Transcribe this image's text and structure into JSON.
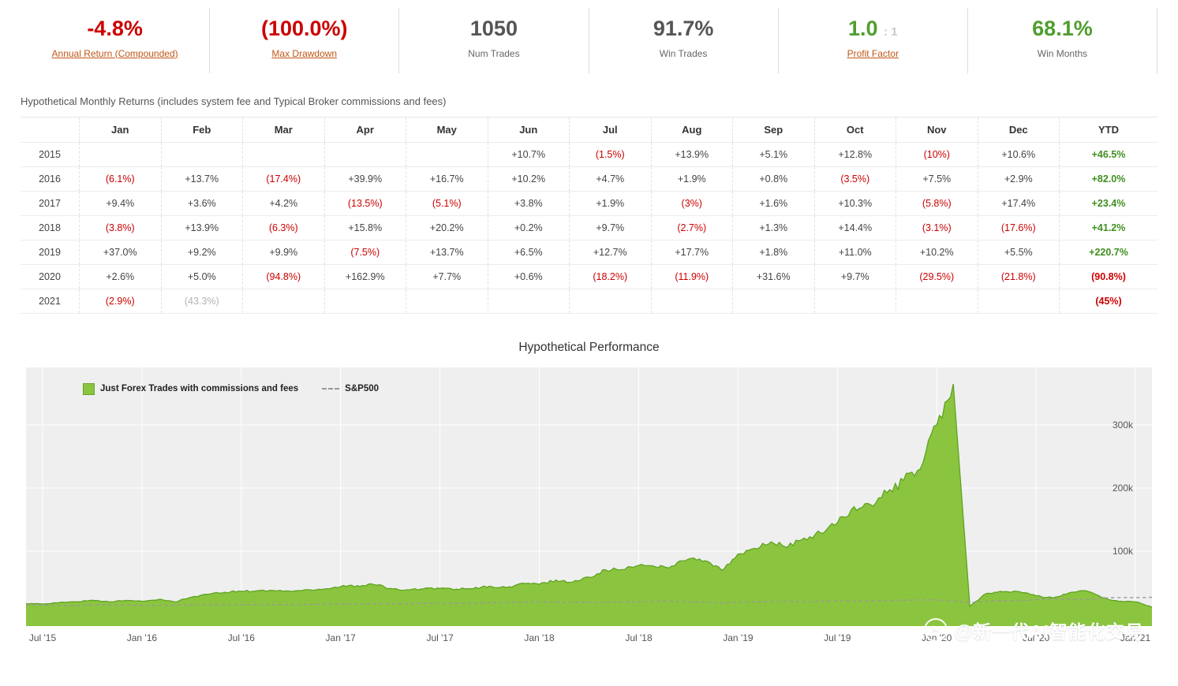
{
  "stats": [
    {
      "id": "annual-return",
      "value": "-4.8%",
      "suffix": "",
      "label": "Annual Return (Compounded)",
      "color": "red",
      "link": true
    },
    {
      "id": "max-drawdown",
      "value": "(100.0%)",
      "suffix": "",
      "label": "Max Drawdown",
      "color": "red",
      "link": true
    },
    {
      "id": "num-trades",
      "value": "1050",
      "suffix": "",
      "label": "Num Trades",
      "color": "gray",
      "link": false
    },
    {
      "id": "win-trades",
      "value": "91.7%",
      "suffix": "",
      "label": "Win Trades",
      "color": "gray",
      "link": false
    },
    {
      "id": "profit-factor",
      "value": "1.0",
      "suffix": ": 1",
      "label": "Profit Factor",
      "color": "green",
      "link": true
    },
    {
      "id": "win-months",
      "value": "68.1%",
      "suffix": "",
      "label": "Win Months",
      "color": "green",
      "link": false
    }
  ],
  "monthly_table": {
    "title": "Hypothetical Monthly Returns (includes system fee and Typical Broker commissions and fees)",
    "columns": [
      "",
      "Jan",
      "Feb",
      "Mar",
      "Apr",
      "May",
      "Jun",
      "Jul",
      "Aug",
      "Sep",
      "Oct",
      "Nov",
      "Dec",
      "YTD"
    ],
    "rows": [
      {
        "year": "2015",
        "cells": [
          "",
          "",
          "",
          "",
          "",
          "+10.7%",
          "(1.5%)",
          "+13.9%",
          "+5.1%",
          "+12.8%",
          "(10%)",
          "+10.6%"
        ],
        "ytd": "+46.5%"
      },
      {
        "year": "2016",
        "cells": [
          "(6.1%)",
          "+13.7%",
          "(17.4%)",
          "+39.9%",
          "+16.7%",
          "+10.2%",
          "+4.7%",
          "+1.9%",
          "+0.8%",
          "(3.5%)",
          "+7.5%",
          "+2.9%"
        ],
        "ytd": "+82.0%"
      },
      {
        "year": "2017",
        "cells": [
          "+9.4%",
          "+3.6%",
          "+4.2%",
          "(13.5%)",
          "(5.1%)",
          "+3.8%",
          "+1.9%",
          "(3%)",
          "+1.6%",
          "+10.3%",
          "(5.8%)",
          "+17.4%"
        ],
        "ytd": "+23.4%"
      },
      {
        "year": "2018",
        "cells": [
          "(3.8%)",
          "+13.9%",
          "(6.3%)",
          "+15.8%",
          "+20.2%",
          "+0.2%",
          "+9.7%",
          "(2.7%)",
          "+1.3%",
          "+14.4%",
          "(3.1%)",
          "(17.6%)"
        ],
        "ytd": "+41.2%"
      },
      {
        "year": "2019",
        "cells": [
          "+37.0%",
          "+9.2%",
          "+9.9%",
          "(7.5%)",
          "+13.7%",
          "+6.5%",
          "+12.7%",
          "+17.7%",
          "+1.8%",
          "+11.0%",
          "+10.2%",
          "+5.5%"
        ],
        "ytd": "+220.7%"
      },
      {
        "year": "2020",
        "cells": [
          "+2.6%",
          "+5.0%",
          "(94.8%)",
          "+162.9%",
          "+7.7%",
          "+0.6%",
          "(18.2%)",
          "(11.9%)",
          "+31.6%",
          "+9.7%",
          "(29.5%)",
          "(21.8%)"
        ],
        "ytd": "(90.8%)"
      },
      {
        "year": "2021",
        "cells": [
          "(2.9%)",
          "(43.3%)",
          "",
          "",
          "",
          "",
          "",
          "",
          "",
          "",
          "",
          ""
        ],
        "muted": [
          1
        ],
        "ytd": "(45%)"
      }
    ]
  },
  "chart": {
    "title": "Hypothetical Performance",
    "x_ticks": [
      "Jul '15",
      "Jan '16",
      "Jul '16",
      "Jan '17",
      "Jul '17",
      "Jan '18",
      "Jul '18",
      "Jan '19",
      "Jul '19",
      "Jan '20",
      "Jul '20",
      "Jan '21"
    ],
    "y_ticks": [
      "300k",
      "200k",
      "100k"
    ]
  },
  "chart_data": {
    "type": "area",
    "title": "Hypothetical Performance",
    "ylim": [
      0,
      380000
    ],
    "y_gridlines": [
      100000,
      200000,
      300000
    ],
    "legend_position": "top-left",
    "x": [
      "2015-06",
      "2015-07",
      "2015-08",
      "2015-09",
      "2015-10",
      "2015-11",
      "2015-12",
      "2016-01",
      "2016-02",
      "2016-03",
      "2016-04",
      "2016-05",
      "2016-06",
      "2016-07",
      "2016-08",
      "2016-09",
      "2016-10",
      "2016-11",
      "2016-12",
      "2017-01",
      "2017-02",
      "2017-03",
      "2017-04",
      "2017-05",
      "2017-06",
      "2017-07",
      "2017-08",
      "2017-09",
      "2017-10",
      "2017-11",
      "2017-12",
      "2018-01",
      "2018-02",
      "2018-03",
      "2018-04",
      "2018-05",
      "2018-06",
      "2018-07",
      "2018-08",
      "2018-09",
      "2018-10",
      "2018-11",
      "2018-12",
      "2019-01",
      "2019-02",
      "2019-03",
      "2019-04",
      "2019-05",
      "2019-06",
      "2019-07",
      "2019-08",
      "2019-09",
      "2019-10",
      "2019-11",
      "2019-12",
      "2020-01",
      "2020-02",
      "2020-03",
      "2020-04",
      "2020-05",
      "2020-06",
      "2020-07",
      "2020-08",
      "2020-09",
      "2020-10",
      "2020-11",
      "2020-12",
      "2021-01",
      "2021-02"
    ],
    "series": [
      {
        "name": "Just Forex Trades with commissions and fees",
        "color": "#8bc53f",
        "values": [
          16600,
          16400,
          18600,
          19600,
          22100,
          19900,
          22000,
          20600,
          23500,
          19400,
          27100,
          31700,
          34900,
          36500,
          37200,
          37500,
          36200,
          38900,
          40000,
          43800,
          45400,
          47300,
          40900,
          38800,
          40300,
          41100,
          39800,
          40500,
          44600,
          42000,
          49400,
          47500,
          54100,
          50700,
          58700,
          70500,
          70700,
          77500,
          75400,
          76400,
          87400,
          84700,
          69800,
          95600,
          104400,
          114800,
          106200,
          120700,
          128500,
          144900,
          170500,
          173600,
          192700,
          212300,
          230000,
          300000,
          365000,
          12500,
          33000,
          35500,
          35700,
          29200,
          25800,
          33900,
          37200,
          26200,
          20500,
          19900,
          11300
        ]
      },
      {
        "name": "S&P500",
        "color": "#999999",
        "style": "dashed",
        "values": [
          15000,
          14900,
          14000,
          13600,
          14700,
          14700,
          14400,
          13700,
          13600,
          14500,
          14600,
          14800,
          14800,
          15300,
          15300,
          15300,
          15000,
          15500,
          15800,
          16100,
          16700,
          16700,
          16800,
          17000,
          17100,
          17400,
          17500,
          17800,
          18200,
          18700,
          18900,
          19900,
          19200,
          18700,
          18700,
          19100,
          19200,
          19900,
          20500,
          20600,
          19200,
          19500,
          17700,
          19100,
          19700,
          20000,
          20800,
          19500,
          20800,
          21100,
          20700,
          21100,
          21500,
          22200,
          22800,
          22800,
          21000,
          18200,
          20500,
          21400,
          21800,
          23000,
          24600,
          23700,
          23100,
          25600,
          26500,
          26200,
          26900
        ]
      }
    ]
  },
  "watermark": {
    "text": "@新一代AI智能化交易",
    "icon": "flag-in-circle"
  }
}
